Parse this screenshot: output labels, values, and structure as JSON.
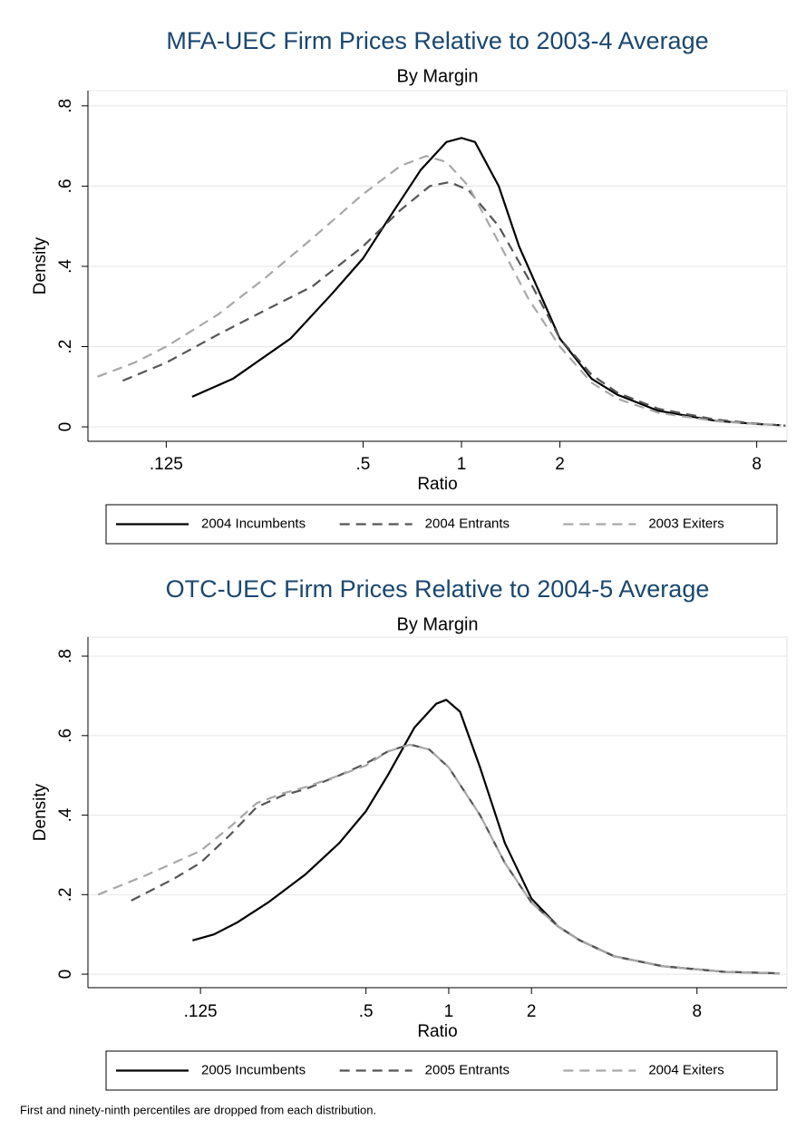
{
  "chart_data": [
    {
      "type": "line",
      "title": "MFA-UEC Firm Prices Relative to 2003-4 Average",
      "subtitle": "By Margin",
      "x_label": "Ratio",
      "y_label": "Density",
      "log_x": true,
      "grid": true,
      "legend": "bottom",
      "xlim": [
        0.072,
        9.9
      ],
      "ylim": [
        -0.036,
        0.838
      ],
      "xticks": [
        {
          "value": 0.125,
          "label": ".125"
        },
        {
          "value": 0.5,
          "label": ".5"
        },
        1,
        2,
        8
      ],
      "yticks": [
        0,
        {
          "value": 0.2,
          "label": ".2"
        },
        {
          "value": 0.4,
          "label": ".4"
        },
        {
          "value": 0.6,
          "label": ".6"
        },
        {
          "value": 0.8,
          "label": ".8"
        }
      ],
      "series": [
        {
          "name": "2004 Incumbents",
          "color": "#000000",
          "line_style": "solid",
          "x": [
            0.15,
            0.2,
            0.3,
            0.4,
            0.5,
            0.6,
            0.75,
            0.9,
            1.0,
            1.1,
            1.3,
            1.5,
            2,
            2.5,
            3,
            4,
            6,
            8,
            9.5
          ],
          "values": [
            0.075,
            0.12,
            0.22,
            0.33,
            0.42,
            0.52,
            0.64,
            0.71,
            0.72,
            0.71,
            0.6,
            0.45,
            0.22,
            0.12,
            0.08,
            0.04,
            0.015,
            0.007,
            0.004
          ]
        },
        {
          "name": "2004 Entrants",
          "color": "#555555",
          "line_style": "dashed",
          "x": [
            0.092,
            0.125,
            0.18,
            0.25,
            0.35,
            0.5,
            0.65,
            0.8,
            0.92,
            1.05,
            1.3,
            1.6,
            2,
            2.5,
            3,
            4,
            6,
            8,
            9.8
          ],
          "values": [
            0.115,
            0.16,
            0.23,
            0.29,
            0.35,
            0.45,
            0.54,
            0.6,
            0.61,
            0.59,
            0.5,
            0.37,
            0.22,
            0.13,
            0.085,
            0.045,
            0.018,
            0.008,
            0.003
          ]
        },
        {
          "name": "2003 Exiters",
          "color": "#a8a8a8",
          "line_style": "dashed",
          "x": [
            0.077,
            0.1,
            0.125,
            0.18,
            0.25,
            0.35,
            0.5,
            0.65,
            0.78,
            0.9,
            1.05,
            1.3,
            1.6,
            2,
            2.5,
            3,
            4,
            6,
            8,
            9.5
          ],
          "values": [
            0.125,
            0.16,
            0.2,
            0.28,
            0.37,
            0.47,
            0.58,
            0.65,
            0.675,
            0.66,
            0.6,
            0.46,
            0.32,
            0.2,
            0.11,
            0.07,
            0.035,
            0.014,
            0.007,
            0.004
          ]
        }
      ]
    },
    {
      "type": "line",
      "title": "OTC-UEC Firm Prices Relative to 2004-5 Average",
      "subtitle": "By Margin",
      "x_label": "Ratio",
      "y_label": "Density",
      "log_x": true,
      "grid": true,
      "legend": "bottom",
      "xlim": [
        0.0487,
        17.0
      ],
      "ylim": [
        -0.034,
        0.848
      ],
      "xticks": [
        {
          "value": 0.125,
          "label": ".125"
        },
        {
          "value": 0.5,
          "label": ".5"
        },
        1,
        2,
        8
      ],
      "yticks": [
        0,
        {
          "value": 0.2,
          "label": ".2"
        },
        {
          "value": 0.4,
          "label": ".4"
        },
        {
          "value": 0.6,
          "label": ".6"
        },
        {
          "value": 0.8,
          "label": ".8"
        }
      ],
      "series": [
        {
          "name": "2005 Incumbents",
          "color": "#000000",
          "line_style": "solid",
          "x": [
            0.117,
            0.14,
            0.17,
            0.22,
            0.3,
            0.4,
            0.5,
            0.6,
            0.75,
            0.9,
            0.98,
            1.1,
            1.3,
            1.6,
            2,
            2.5,
            3,
            4,
            6,
            10,
            16
          ],
          "values": [
            0.085,
            0.1,
            0.13,
            0.18,
            0.25,
            0.33,
            0.41,
            0.5,
            0.62,
            0.68,
            0.69,
            0.66,
            0.52,
            0.33,
            0.19,
            0.12,
            0.085,
            0.045,
            0.02,
            0.006,
            0.002
          ]
        },
        {
          "name": "2005 Entrants",
          "color": "#555555",
          "line_style": "dashed",
          "x": [
            0.07,
            0.1,
            0.125,
            0.16,
            0.2,
            0.25,
            0.3,
            0.4,
            0.5,
            0.6,
            0.72,
            0.85,
            1,
            1.3,
            1.6,
            2,
            2.5,
            3,
            4,
            6,
            10,
            16
          ],
          "values": [
            0.185,
            0.24,
            0.28,
            0.35,
            0.42,
            0.45,
            0.465,
            0.5,
            0.53,
            0.56,
            0.578,
            0.565,
            0.52,
            0.4,
            0.28,
            0.18,
            0.12,
            0.085,
            0.045,
            0.02,
            0.006,
            0.002
          ]
        },
        {
          "name": "2004 Exiters",
          "color": "#a8a8a8",
          "line_style": "dashed",
          "x": [
            0.053,
            0.08,
            0.125,
            0.16,
            0.2,
            0.25,
            0.3,
            0.4,
            0.5,
            0.6,
            0.72,
            0.85,
            1,
            1.3,
            1.6,
            2,
            2.5,
            3,
            4,
            6,
            10,
            16
          ],
          "values": [
            0.2,
            0.25,
            0.31,
            0.37,
            0.43,
            0.455,
            0.47,
            0.5,
            0.525,
            0.56,
            0.577,
            0.565,
            0.52,
            0.4,
            0.28,
            0.18,
            0.12,
            0.085,
            0.045,
            0.02,
            0.006,
            0.002
          ]
        }
      ]
    }
  ],
  "note": "First and ninety-ninth percentiles are dropped from each distribution."
}
